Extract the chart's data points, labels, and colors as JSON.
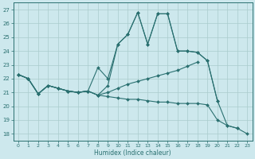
{
  "background_color": "#cde8ed",
  "grid_color": "#aacccc",
  "line_color": "#2a7070",
  "xlabel": "Humidex (Indice chaleur)",
  "xlim": [
    -0.5,
    23.5
  ],
  "ylim": [
    17.5,
    27.5
  ],
  "yticks": [
    18,
    19,
    20,
    21,
    22,
    23,
    24,
    25,
    26,
    27
  ],
  "xticks": [
    0,
    1,
    2,
    3,
    4,
    5,
    6,
    7,
    8,
    9,
    10,
    11,
    12,
    13,
    14,
    15,
    16,
    17,
    18,
    19,
    20,
    21,
    22,
    23
  ],
  "series": [
    {
      "x": [
        0,
        1,
        2,
        3,
        4,
        5,
        6,
        7,
        8,
        9,
        10,
        11,
        12,
        13,
        14,
        15,
        16,
        17,
        18,
        19,
        20,
        21,
        22,
        23
      ],
      "y": [
        22.3,
        22.0,
        20.9,
        21.5,
        21.3,
        21.1,
        21.0,
        21.1,
        20.8,
        20.7,
        20.6,
        20.5,
        20.5,
        20.4,
        20.3,
        20.3,
        20.2,
        20.2,
        20.2,
        20.1,
        19.0,
        18.6,
        18.4,
        18.0
      ]
    },
    {
      "x": [
        0,
        1,
        2,
        3,
        4,
        5,
        6,
        7,
        8,
        9,
        10,
        11,
        12,
        13,
        14,
        15,
        16,
        17,
        18,
        19,
        20,
        21,
        22
      ],
      "y": [
        22.3,
        22.0,
        20.9,
        21.5,
        21.3,
        21.1,
        21.0,
        21.1,
        20.8,
        21.5,
        24.5,
        25.2,
        26.8,
        24.5,
        26.7,
        26.7,
        24.0,
        24.0,
        23.9,
        23.3,
        20.4,
        18.6,
        18.4
      ]
    },
    {
      "x": [
        0,
        1,
        2,
        3,
        4,
        5,
        6,
        7,
        8,
        9,
        10,
        11,
        12,
        13,
        14,
        15,
        16,
        17,
        18,
        19,
        20
      ],
      "y": [
        22.3,
        22.0,
        20.9,
        21.5,
        21.3,
        21.1,
        21.0,
        21.1,
        22.8,
        22.0,
        24.5,
        25.2,
        26.8,
        24.5,
        26.7,
        26.7,
        24.0,
        24.0,
        23.9,
        23.3,
        20.4
      ]
    },
    {
      "x": [
        0,
        1,
        2,
        3,
        4,
        5,
        6,
        7,
        8,
        9,
        10,
        11,
        12,
        13,
        14,
        15,
        16,
        17,
        18
      ],
      "y": [
        22.3,
        22.0,
        20.9,
        21.5,
        21.3,
        21.1,
        21.0,
        21.1,
        20.8,
        21.0,
        21.3,
        21.6,
        21.8,
        22.0,
        22.2,
        22.4,
        22.6,
        22.9,
        23.2
      ]
    }
  ]
}
